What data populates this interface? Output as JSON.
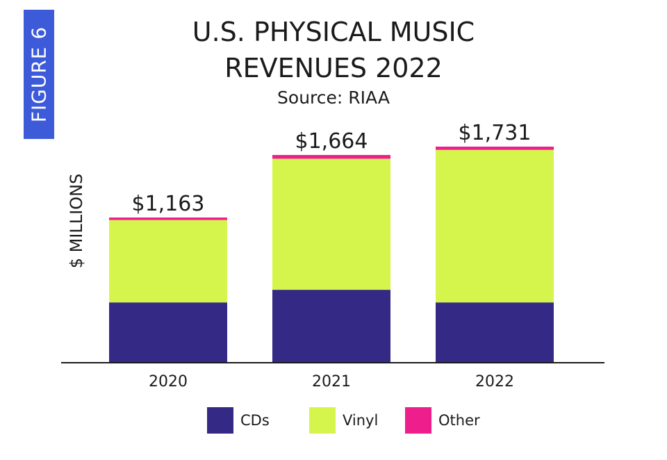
{
  "figure_label": "FIGURE 6",
  "title_line1": "U.S. PHYSICAL MUSIC",
  "title_line2": "REVENUES 2022",
  "subtitle": "Source: RIAA",
  "colors": {
    "cds": "#342a85",
    "vinyl": "#d6f54c",
    "other": "#ee1e8c",
    "tab": "#3d5bd9"
  },
  "chart_data": {
    "type": "bar",
    "stacked": true,
    "categories": [
      "2020",
      "2021",
      "2022"
    ],
    "series": [
      {
        "name": "CDs",
        "values": [
          483,
          584,
          483
        ]
      },
      {
        "name": "Vinyl",
        "values": [
          660,
          1050,
          1222
        ]
      },
      {
        "name": "Other",
        "values": [
          20,
          30,
          26
        ]
      }
    ],
    "totals": [
      1163,
      1664,
      1731
    ],
    "data_labels": [
      "$1,163",
      "$1,664",
      "$1,731"
    ],
    "ylabel": "$ MILLIONS",
    "ylim": [
      0,
      1731
    ],
    "grid": false,
    "legend_position": "bottom"
  },
  "legend": [
    {
      "label": "CDs"
    },
    {
      "label": "Vinyl"
    },
    {
      "label": "Other"
    }
  ]
}
